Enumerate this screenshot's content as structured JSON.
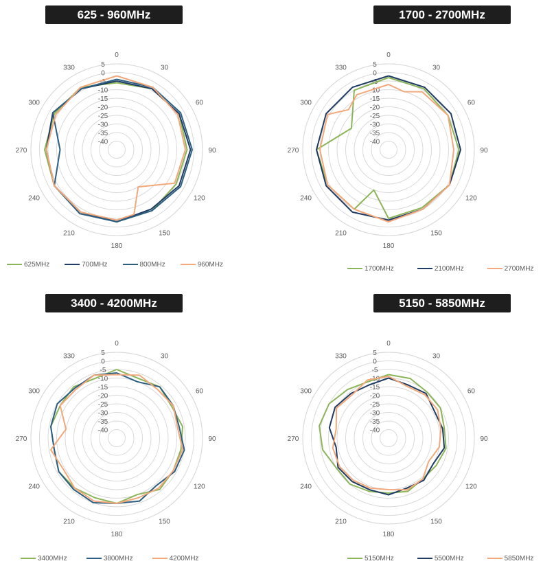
{
  "chart_data": [
    {
      "type": "polar-line",
      "title": "625 - 960MHz",
      "angular_ticks": [
        "0",
        "30",
        "60",
        "90",
        "120",
        "150",
        "180",
        "210",
        "240",
        "270",
        "300",
        "330"
      ],
      "radial_ticks": [
        "5",
        "0",
        "-5",
        "-10",
        "-15",
        "-20",
        "-25",
        "-30",
        "-35",
        "-40"
      ],
      "rlim": [
        -45,
        5
      ],
      "series": [
        {
          "name": "625MHz",
          "color": "#8cb55a",
          "angles": [
            0,
            30,
            60,
            90,
            120,
            150,
            180,
            210,
            240,
            270,
            300,
            330
          ],
          "values": [
            -6,
            -4,
            -3,
            -4,
            -5,
            -4,
            -3,
            -3,
            -3,
            -3,
            -3,
            -3
          ]
        },
        {
          "name": "700MHz",
          "color": "#1f3b64",
          "angles": [
            0,
            30,
            60,
            90,
            120,
            150,
            180,
            210,
            240,
            270,
            300,
            330
          ],
          "values": [
            -5,
            -4,
            -3,
            -2,
            -3,
            -5,
            -3,
            -3,
            -3,
            -4,
            -2,
            -4
          ]
        },
        {
          "name": "800MHz",
          "color": "#2b5e80",
          "angles": [
            0,
            30,
            60,
            90,
            120,
            150,
            180,
            210,
            240,
            270,
            300,
            330
          ],
          "values": [
            -4,
            -3,
            -2,
            -1,
            -2,
            -4,
            -3,
            -2,
            -3,
            -12,
            -2,
            -4
          ]
        },
        {
          "name": "960MHz",
          "color": "#f2a87a",
          "angles": [
            0,
            30,
            60,
            90,
            120,
            150,
            165,
            180,
            210,
            240,
            270,
            300,
            330
          ],
          "values": [
            -2,
            -3,
            -4,
            -5,
            -6,
            -20,
            -6,
            -4,
            -3,
            -3,
            -4,
            -4,
            -3
          ]
        }
      ]
    },
    {
      "type": "polar-line",
      "title": "1700 - 2700MHz",
      "angular_ticks": [
        "0",
        "30",
        "60",
        "90",
        "120",
        "150",
        "180",
        "210",
        "240",
        "270",
        "300",
        "330"
      ],
      "radial_ticks": [
        "5",
        "0",
        "-5",
        "-10",
        "-15",
        "-20",
        "-25",
        "-30",
        "-35",
        "-40"
      ],
      "rlim": [
        -45,
        5
      ],
      "series": [
        {
          "name": "1700MHz",
          "color": "#8cb55a",
          "angles": [
            0,
            30,
            60,
            90,
            120,
            150,
            180,
            200,
            210,
            240,
            270,
            300,
            330
          ],
          "values": [
            -3,
            -4,
            -5,
            -4,
            -4,
            -6,
            -5,
            -20,
            -5,
            -4,
            -3,
            -20,
            -5
          ]
        },
        {
          "name": "2100MHz",
          "color": "#1f3b64",
          "angles": [
            0,
            30,
            60,
            90,
            120,
            150,
            180,
            210,
            240,
            270,
            300,
            330
          ],
          "values": [
            -2,
            -3,
            -3,
            -3,
            -4,
            -5,
            -4,
            -3,
            -3,
            -3,
            -3,
            -3
          ]
        },
        {
          "name": "2700MHz",
          "color": "#f2a87a",
          "angles": [
            0,
            15,
            30,
            60,
            90,
            120,
            150,
            180,
            210,
            240,
            270,
            300,
            315,
            330
          ],
          "values": [
            -7,
            -10,
            -6,
            -5,
            -7,
            -4,
            -5,
            -3,
            -5,
            -4,
            -5,
            -4,
            -12,
            -8
          ]
        }
      ]
    },
    {
      "type": "polar-line",
      "title": "3400 - 4200MHz",
      "angular_ticks": [
        "0",
        "30",
        "60",
        "90",
        "120",
        "150",
        "180",
        "210",
        "240",
        "270",
        "300",
        "330"
      ],
      "radial_ticks": [
        "5",
        "0",
        "-5",
        "-10",
        "-15",
        "-20",
        "-25",
        "-30",
        "-35",
        "-40"
      ],
      "rlim": [
        -45,
        5
      ],
      "series": [
        {
          "name": "3400MHz",
          "color": "#8cb55a",
          "angles": [
            0,
            20,
            40,
            60,
            80,
            100,
            120,
            140,
            160,
            180,
            200,
            220,
            240,
            260,
            280,
            300,
            320,
            340
          ],
          "values": [
            -5,
            -8,
            -6,
            -8,
            -6,
            -7,
            -7,
            -6,
            -10,
            -7,
            -8,
            -7,
            -6,
            -8,
            -6,
            -7,
            -6,
            -8
          ]
        },
        {
          "name": "3800MHz",
          "color": "#2b5e80",
          "angles": [
            0,
            20,
            40,
            60,
            80,
            100,
            120,
            140,
            160,
            180,
            200,
            220,
            240,
            260,
            280,
            300,
            320,
            340
          ],
          "values": [
            -7,
            -10,
            -6,
            -7,
            -8,
            -5,
            -6,
            -9,
            -6,
            -7,
            -5,
            -6,
            -6,
            -8,
            -6,
            -5,
            -7,
            -6
          ]
        },
        {
          "name": "4200MHz",
          "color": "#f2a87a",
          "angles": [
            0,
            20,
            40,
            60,
            80,
            100,
            120,
            140,
            160,
            180,
            200,
            220,
            240,
            260,
            280,
            300,
            320,
            340
          ],
          "values": [
            -8,
            -6,
            -8,
            -7,
            -9,
            -6,
            -7,
            -7,
            -8,
            -7,
            -6,
            -7,
            -9,
            -6,
            -15,
            -7,
            -8,
            -6
          ]
        }
      ]
    },
    {
      "type": "polar-line",
      "title": "5150 - 5850MHz",
      "angular_ticks": [
        "0",
        "30",
        "60",
        "90",
        "120",
        "150",
        "180",
        "210",
        "240",
        "270",
        "300",
        "330"
      ],
      "radial_ticks": [
        "5",
        "0",
        "-5",
        "-10",
        "-15",
        "-20",
        "-25",
        "-30",
        "-35",
        "-40"
      ],
      "rlim": [
        -45,
        5
      ],
      "series": [
        {
          "name": "5150MHz",
          "color": "#8cb55a",
          "angles": [
            0,
            20,
            40,
            60,
            80,
            100,
            120,
            140,
            160,
            180,
            200,
            220,
            240,
            260,
            280,
            300,
            320,
            340
          ],
          "values": [
            -8,
            -8,
            -10,
            -10,
            -12,
            -11,
            -13,
            -14,
            -12,
            -13,
            -12,
            -10,
            -10,
            -6,
            -4,
            -5,
            -8,
            -10
          ]
        },
        {
          "name": "5500MHz",
          "color": "#1f3b64",
          "angles": [
            0,
            20,
            40,
            60,
            80,
            100,
            120,
            140,
            160,
            180,
            200,
            220,
            240,
            260,
            280,
            300,
            320,
            340
          ],
          "values": [
            -10,
            -12,
            -11,
            -14,
            -13,
            -12,
            -15,
            -13,
            -14,
            -12,
            -13,
            -12,
            -11,
            -14,
            -10,
            -9,
            -11,
            -12
          ]
        },
        {
          "name": "5850MHz",
          "color": "#f2a87a",
          "angles": [
            0,
            20,
            40,
            60,
            80,
            100,
            120,
            140,
            160,
            180,
            200,
            220,
            240,
            260,
            280,
            300,
            320,
            340
          ],
          "values": [
            -9,
            -13,
            -12,
            -12,
            -14,
            -15,
            -18,
            -14,
            -13,
            -15,
            -14,
            -13,
            -12,
            -12,
            -14,
            -10,
            -12,
            -9
          ]
        }
      ]
    }
  ]
}
